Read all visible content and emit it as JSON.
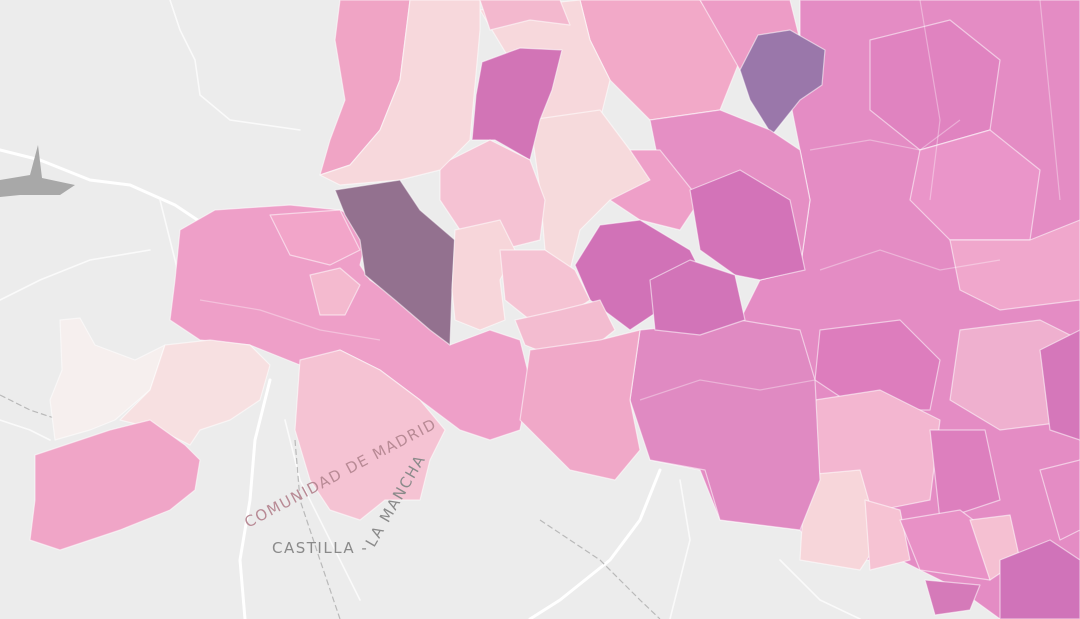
{
  "map": {
    "labels": {
      "community": "COMUNIDAD DE MADRID",
      "castilla": "CASTILLA - LA MANCHA"
    },
    "colors": {
      "background": "#ececec",
      "very_light": "#f6eeee",
      "light": "#f7d8dc",
      "pale_pink": "#f6c3d3",
      "pink": "#f1a8c8",
      "medium": "#e88cc4",
      "magenta": "#d275b8",
      "violet": "#9a77aa",
      "dark_mauve": "#93718f"
    }
  }
}
